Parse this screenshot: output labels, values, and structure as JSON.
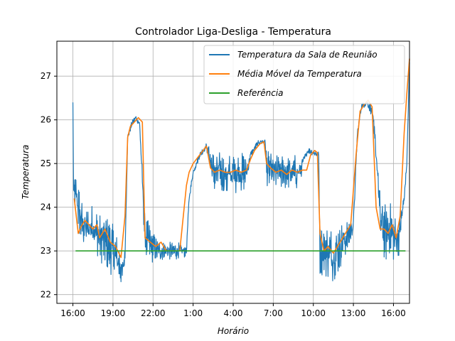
{
  "chart_data": {
    "type": "line",
    "title": "Controlador Liga-Desliga - Temperatura",
    "xlabel": "Horário",
    "ylabel": "Temperatura",
    "x_ticks": [
      "16:00",
      "19:00",
      "22:00",
      "1:00",
      "4:00",
      "7:00",
      "10:00",
      "13:00",
      "16:00"
    ],
    "x_range_hours": [
      -1.2,
      25.2
    ],
    "ylim": [
      21.8,
      27.8
    ],
    "y_ticks": [
      22,
      23,
      24,
      25,
      26,
      27
    ],
    "grid": true,
    "legend_position": "top-right",
    "colors": {
      "raw": "#1f77b4",
      "avg": "#ff7f0e",
      "ref": "#2ca02c"
    },
    "series": [
      {
        "name": "Temperatura da Sala de Reunião",
        "color": "#1f77b4",
        "style": "noisy",
        "x": [
          0,
          0.05,
          0.3,
          0.6,
          1.0,
          1.5,
          2.0,
          2.5,
          3.0,
          3.5,
          3.7,
          3.9,
          4.1,
          4.4,
          4.7,
          5.0,
          5.4,
          5.7,
          5.9,
          6.0,
          6.3,
          6.8,
          7.3,
          7.8,
          8.5,
          8.7,
          9.0,
          9.5,
          10.0,
          10.5,
          11.0,
          11.5,
          12.0,
          12.5,
          13.0,
          13.3,
          13.7,
          14.0,
          14.4,
          14.5,
          15.0,
          15.5,
          16.0,
          16.5,
          17.0,
          17.3,
          17.6,
          18.0,
          18.4,
          18.5,
          19.0,
          19.5,
          20.0,
          20.5,
          21.0,
          21.3,
          21.6,
          22.0,
          22.4,
          22.8,
          23.0,
          23.4,
          23.8,
          24.0,
          24.4,
          24.8,
          25.0,
          25.2
        ],
        "values": [
          26.4,
          24.4,
          24.2,
          23.7,
          23.5,
          23.6,
          23.3,
          23.2,
          23.0,
          22.7,
          22.5,
          22.9,
          25.6,
          25.9,
          26.05,
          25.9,
          23.3,
          23.2,
          23.1,
          23.1,
          23.0,
          23.0,
          23.0,
          23.0,
          23.0,
          24.2,
          24.8,
          25.2,
          25.4,
          24.8,
          24.8,
          24.7,
          24.8,
          24.8,
          24.8,
          25.2,
          25.4,
          25.5,
          25.5,
          24.9,
          24.8,
          24.8,
          24.8,
          24.8,
          24.8,
          25.1,
          25.3,
          25.25,
          25.2,
          23.0,
          23.0,
          22.9,
          23.1,
          23.3,
          23.6,
          25.7,
          26.3,
          26.4,
          26.2,
          24.9,
          23.7,
          23.4,
          23.5,
          23.3,
          23.3,
          24.2,
          25.0,
          27.3
        ],
        "noise_amplitude": [
          0,
          0.15,
          0.45,
          0.4,
          0.35,
          0.35,
          0.4,
          0.45,
          0.45,
          0.35,
          0.2,
          0.1,
          0.05,
          0.05,
          0.05,
          0.05,
          0.35,
          0.35,
          0.3,
          0.25,
          0.2,
          0.15,
          0.15,
          0.15,
          0.1,
          0.05,
          0.05,
          0.05,
          0.05,
          0.35,
          0.35,
          0.35,
          0.35,
          0.35,
          0.3,
          0.05,
          0.05,
          0.05,
          0.05,
          0.3,
          0.3,
          0.3,
          0.3,
          0.3,
          0.3,
          0.05,
          0.05,
          0.05,
          0.05,
          0.4,
          0.45,
          0.45,
          0.4,
          0.3,
          0.15,
          0.05,
          0.05,
          0.05,
          0.1,
          0.3,
          0.45,
          0.5,
          0.45,
          0.4,
          0.3,
          0.1,
          0.05,
          0.05
        ]
      },
      {
        "name": "Média Móvel da Temperatura",
        "color": "#ff7f0e",
        "style": "smooth",
        "x": [
          0.1,
          0.4,
          0.6,
          0.9,
          1.2,
          1.5,
          1.8,
          2.0,
          2.4,
          2.8,
          3.2,
          3.6,
          3.9,
          4.1,
          4.3,
          4.6,
          4.9,
          5.2,
          5.4,
          5.8,
          6.2,
          6.6,
          7.0,
          7.5,
          8.0,
          8.5,
          8.7,
          9.0,
          9.5,
          10.0,
          10.3,
          10.6,
          11.0,
          11.4,
          11.8,
          12.2,
          12.6,
          13.0,
          13.3,
          13.6,
          14.0,
          14.3,
          14.5,
          14.8,
          15.2,
          15.6,
          16.0,
          16.4,
          16.8,
          17.2,
          17.5,
          17.8,
          18.1,
          18.3,
          18.5,
          18.8,
          19.1,
          19.5,
          20.0,
          20.4,
          20.8,
          21.2,
          21.5,
          21.8,
          22.1,
          22.4,
          22.7,
          23.0,
          23.3,
          23.6,
          23.9,
          24.2,
          24.5,
          24.8,
          25.0,
          25.2
        ],
        "values": [
          24.2,
          23.4,
          23.55,
          23.7,
          23.6,
          23.5,
          23.6,
          23.3,
          23.5,
          23.2,
          23.1,
          22.85,
          23.8,
          25.6,
          25.85,
          25.95,
          26.05,
          25.95,
          23.3,
          23.2,
          23.1,
          23.2,
          23.0,
          23.0,
          23.0,
          24.5,
          24.8,
          25.0,
          25.2,
          25.4,
          24.9,
          24.8,
          24.85,
          24.8,
          24.8,
          24.85,
          24.8,
          24.85,
          25.1,
          25.3,
          25.45,
          25.5,
          25.0,
          24.9,
          24.8,
          24.85,
          24.75,
          24.85,
          24.8,
          24.85,
          24.85,
          25.2,
          25.3,
          25.25,
          23.4,
          23.0,
          23.1,
          22.95,
          23.2,
          23.4,
          23.6,
          25.2,
          26.2,
          26.35,
          26.45,
          26.3,
          24.0,
          23.5,
          23.5,
          23.4,
          23.6,
          23.3,
          23.8,
          25.7,
          26.6,
          27.4
        ]
      },
      {
        "name": "Referência",
        "color": "#2ca02c",
        "style": "flat",
        "x": [
          0.2,
          24.9
        ],
        "values": [
          23.0,
          23.0
        ]
      }
    ]
  }
}
